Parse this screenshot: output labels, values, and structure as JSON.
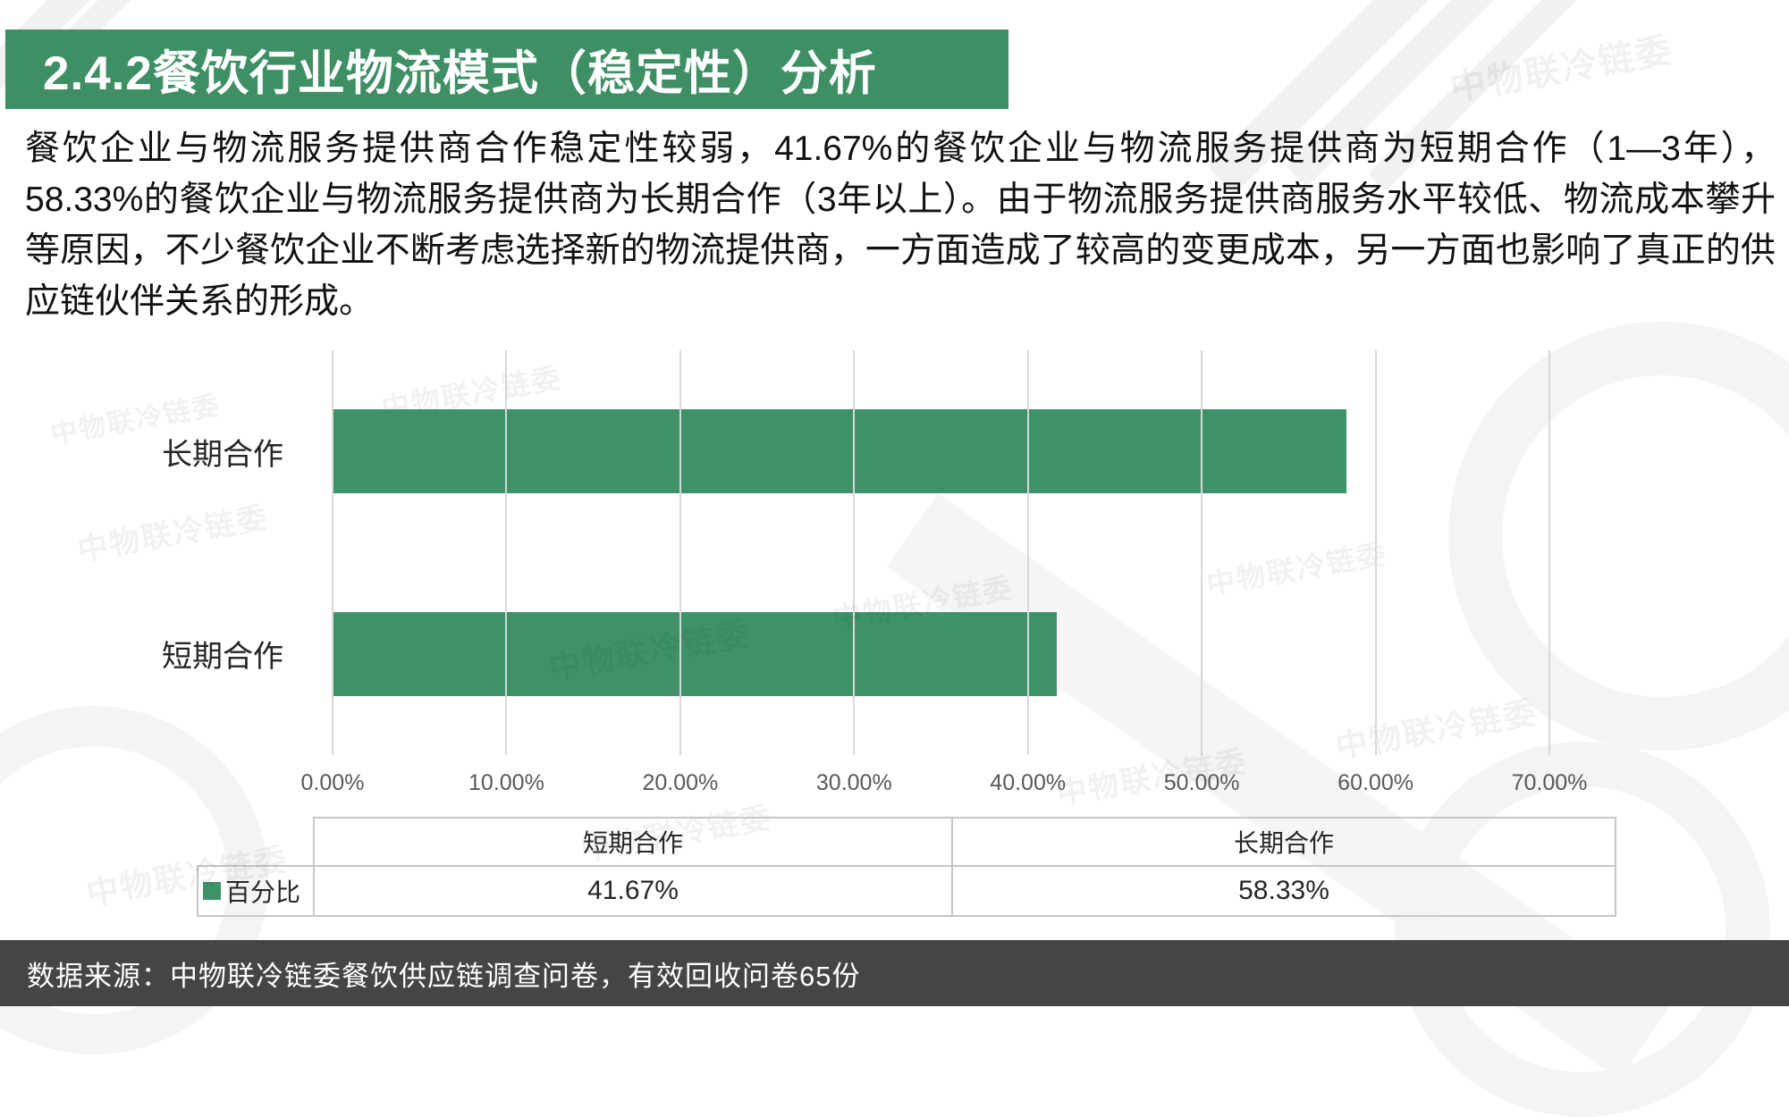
{
  "title": "2.4.2餐饮行业物流模式（稳定性）分析",
  "paragraph": "餐饮企业与物流服务提供商合作稳定性较弱，41.67%的餐饮企业与物流服务提供商为短期合作（1—3年），58.33%的餐饮企业与物流服务提供商为长期合作（3年以上）。由于物流服务提供商服务水平较低、物流成本攀升等原因，不少餐饮企业不断考虑选择新的物流提供商，一方面造成了较高的变更成本，另一方面也影响了真正的供应链伙伴关系的形成。",
  "watermark": {
    "text": "中物联冷链委"
  },
  "footer": {
    "source_note": "数据来源：中物联冷链委餐饮供应链调查问卷，有效回收问卷65份"
  },
  "colors": {
    "accent_green": "#3E9268",
    "banner_green": "#3E8F64",
    "footer_gray": "#454545",
    "gridline": "#D8D8D8",
    "axis_text": "#595959",
    "table_border": "#C6C6C6"
  },
  "chart_data": {
    "type": "bar",
    "orientation": "horizontal",
    "title": "",
    "categories": [
      "长期合作",
      "短期合作"
    ],
    "series": [
      {
        "name": "百分比",
        "values": [
          58.33,
          41.67
        ]
      }
    ],
    "xlim": [
      0,
      70
    ],
    "x_tick_values": [
      0,
      10,
      20,
      30,
      40,
      50,
      60,
      70
    ],
    "x_tick_labels": [
      "0.00%",
      "10.00%",
      "20.00%",
      "30.00%",
      "40.00%",
      "50.00%",
      "60.00%",
      "70.00%"
    ],
    "grid": true,
    "legend": {
      "name": "百分比",
      "position": "bottom-left"
    },
    "data_table": {
      "row_label": "百分比",
      "columns": [
        "短期合作",
        "长期合作"
      ],
      "values": [
        "41.67%",
        "58.33%"
      ]
    }
  }
}
